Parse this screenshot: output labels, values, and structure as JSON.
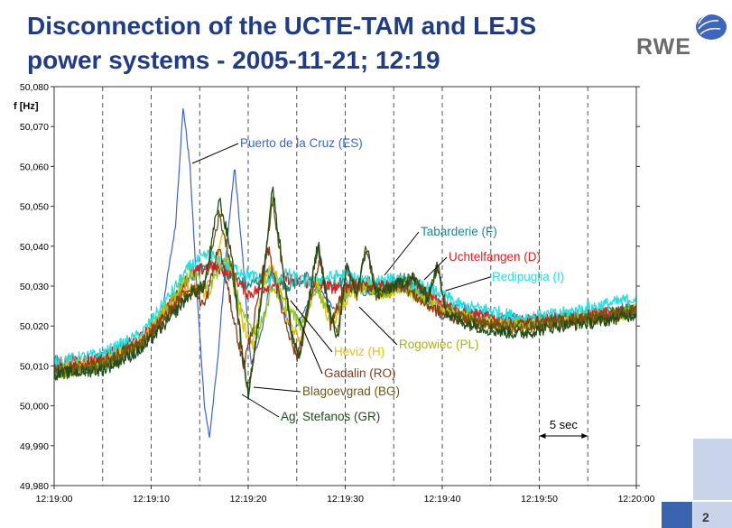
{
  "slide": {
    "title_line1": "Disconnection of the UCTE-TAM and LEJS",
    "title_line2": "power systems - 2005-11-21; 12:19",
    "logo_text": "RWE",
    "page_number": "2"
  },
  "colors": {
    "title": "#1f3b8c",
    "deco_light": "#c9d4ea",
    "deco_dark": "#3a64b0"
  },
  "chart_data": {
    "type": "line",
    "ylabel": "f [Hz]",
    "ylim": [
      49.98,
      50.08
    ],
    "yticks": [
      {
        "v": 50.08,
        "label": "50,080"
      },
      {
        "v": 50.07,
        "label": "50,070"
      },
      {
        "v": 50.06,
        "label": "50,060"
      },
      {
        "v": 50.05,
        "label": "50,050"
      },
      {
        "v": 50.04,
        "label": "50,040"
      },
      {
        "v": 50.03,
        "label": "50,030"
      },
      {
        "v": 50.02,
        "label": "50,020"
      },
      {
        "v": 50.01,
        "label": "50,010"
      },
      {
        "v": 50.0,
        "label": "50,000"
      },
      {
        "v": 49.99,
        "label": "49,990"
      },
      {
        "v": 49.98,
        "label": "49,980"
      }
    ],
    "xlim": [
      0,
      60
    ],
    "xticks": [
      {
        "t": 0,
        "label": "12:19:00"
      },
      {
        "t": 10,
        "label": "12:19:10"
      },
      {
        "t": 20,
        "label": "12:19:20"
      },
      {
        "t": 30,
        "label": "12:19:30"
      },
      {
        "t": 40,
        "label": "12:19:40"
      },
      {
        "t": 50,
        "label": "12:19:50"
      },
      {
        "t": 60,
        "label": "12:20:00"
      }
    ],
    "grid": true,
    "scale_bar": {
      "label": "5 sec",
      "t0": 50,
      "t1": 55
    },
    "series": [
      {
        "name": "Puerto de la Cruz (ES)",
        "color": "#3b66d1",
        "points": [
          [
            0,
            50.009
          ],
          [
            5,
            50.01
          ],
          [
            9,
            50.016
          ],
          [
            11,
            50.022
          ],
          [
            12.5,
            50.045
          ],
          [
            13.3,
            50.075
          ],
          [
            14,
            50.06
          ],
          [
            14.8,
            50.025
          ],
          [
            15.5,
            50.0
          ],
          [
            16,
            49.992
          ],
          [
            16.8,
            50.01
          ],
          [
            17.8,
            50.04
          ],
          [
            18.6,
            50.06
          ],
          [
            19.5,
            50.035
          ],
          [
            20.3,
            50.01
          ],
          [
            21.5,
            50.02
          ],
          [
            22.5,
            50.035
          ],
          [
            23.5,
            50.025
          ],
          [
            24.5,
            50.018
          ],
          [
            25.5,
            50.022
          ],
          [
            27,
            50.03
          ],
          [
            29,
            50.024
          ],
          [
            31,
            50.03
          ],
          [
            33,
            50.028
          ],
          [
            35,
            50.03
          ],
          [
            38,
            50.028
          ],
          [
            40,
            50.022
          ],
          [
            42,
            50.026
          ],
          [
            44,
            50.02
          ],
          [
            47,
            50.023
          ],
          [
            50,
            50.02
          ],
          [
            53,
            50.021
          ],
          [
            56,
            50.022
          ],
          [
            60,
            50.023
          ]
        ]
      },
      {
        "name": "Tabarderie (F)",
        "color": "#1a8a8a",
        "points": [
          [
            0,
            50.009
          ],
          [
            5,
            50.012
          ],
          [
            9,
            50.016
          ],
          [
            12,
            50.025
          ],
          [
            14,
            50.032
          ],
          [
            16,
            50.036
          ],
          [
            18,
            50.033
          ],
          [
            20,
            50.03
          ],
          [
            22,
            50.033
          ],
          [
            24,
            50.03
          ],
          [
            26,
            50.032
          ],
          [
            28,
            50.03
          ],
          [
            30,
            50.031
          ],
          [
            32,
            50.029
          ],
          [
            34,
            50.03
          ],
          [
            36,
            50.032
          ],
          [
            38,
            50.028
          ],
          [
            40,
            50.025
          ],
          [
            42,
            50.024
          ],
          [
            45,
            50.022
          ],
          [
            48,
            50.021
          ],
          [
            52,
            50.022
          ],
          [
            56,
            50.023
          ],
          [
            60,
            50.025
          ]
        ]
      },
      {
        "name": "Uchtelfangen (D)",
        "color": "#e02020",
        "points": [
          [
            0,
            50.011
          ],
          [
            5,
            50.012
          ],
          [
            9,
            50.017
          ],
          [
            12,
            50.026
          ],
          [
            14,
            50.033
          ],
          [
            16,
            50.035
          ],
          [
            18,
            50.034
          ],
          [
            20,
            50.028
          ],
          [
            22,
            50.03
          ],
          [
            24,
            50.032
          ],
          [
            26,
            50.031
          ],
          [
            28,
            50.03
          ],
          [
            30,
            50.029
          ],
          [
            32,
            50.031
          ],
          [
            34,
            50.03
          ],
          [
            36,
            50.031
          ],
          [
            38,
            50.029
          ],
          [
            40,
            50.026
          ],
          [
            42,
            50.023
          ],
          [
            45,
            50.022
          ],
          [
            48,
            50.021
          ],
          [
            52,
            50.022
          ],
          [
            56,
            50.023
          ],
          [
            60,
            50.024
          ]
        ]
      },
      {
        "name": "Redipuglia (I)",
        "color": "#22e0e0",
        "points": [
          [
            0,
            50.011
          ],
          [
            5,
            50.013
          ],
          [
            9,
            50.018
          ],
          [
            12,
            50.028
          ],
          [
            14,
            50.035
          ],
          [
            16,
            50.038
          ],
          [
            18,
            50.035
          ],
          [
            20,
            50.033
          ],
          [
            22,
            50.031
          ],
          [
            24,
            50.033
          ],
          [
            26,
            50.031
          ],
          [
            28,
            50.032
          ],
          [
            30,
            50.033
          ],
          [
            32,
            50.031
          ],
          [
            34,
            50.032
          ],
          [
            36,
            50.031
          ],
          [
            38,
            50.03
          ],
          [
            40,
            50.028
          ],
          [
            42,
            50.025
          ],
          [
            45,
            50.024
          ],
          [
            48,
            50.022
          ],
          [
            52,
            50.023
          ],
          [
            56,
            50.025
          ],
          [
            60,
            50.027
          ]
        ]
      },
      {
        "name": "Rogowiec (PL)",
        "color": "#8cc81e",
        "points": [
          [
            0,
            50.008
          ],
          [
            5,
            50.01
          ],
          [
            9,
            50.016
          ],
          [
            12,
            50.026
          ],
          [
            14,
            50.033
          ],
          [
            16,
            50.03
          ],
          [
            18,
            50.038
          ],
          [
            19.5,
            50.022
          ],
          [
            21,
            50.018
          ],
          [
            22.5,
            50.03
          ],
          [
            24,
            50.025
          ],
          [
            25.5,
            50.02
          ],
          [
            27,
            50.03
          ],
          [
            28.5,
            50.022
          ],
          [
            30,
            50.028
          ],
          [
            32,
            50.03
          ],
          [
            34,
            50.028
          ],
          [
            36,
            50.03
          ],
          [
            38,
            50.027
          ],
          [
            40,
            50.024
          ],
          [
            43,
            50.022
          ],
          [
            46,
            50.02
          ],
          [
            50,
            50.021
          ],
          [
            55,
            50.022
          ],
          [
            60,
            50.024
          ]
        ]
      },
      {
        "name": "Heviz (H)",
        "color": "#e8c000",
        "points": [
          [
            0,
            50.009
          ],
          [
            5,
            50.011
          ],
          [
            9,
            50.016
          ],
          [
            12,
            50.025
          ],
          [
            14,
            50.03
          ],
          [
            16,
            50.028
          ],
          [
            17.5,
            50.044
          ],
          [
            18.5,
            50.03
          ],
          [
            19.5,
            50.02
          ],
          [
            20.5,
            50.015
          ],
          [
            21.5,
            50.03
          ],
          [
            22.5,
            50.036
          ],
          [
            24,
            50.022
          ],
          [
            25.5,
            50.016
          ],
          [
            27,
            50.032
          ],
          [
            28.5,
            50.02
          ],
          [
            30,
            50.026
          ],
          [
            32,
            50.03
          ],
          [
            34,
            50.028
          ],
          [
            36,
            50.03
          ],
          [
            38,
            50.026
          ],
          [
            40,
            50.024
          ],
          [
            44,
            50.021
          ],
          [
            48,
            50.02
          ],
          [
            53,
            50.021
          ],
          [
            60,
            50.023
          ]
        ]
      },
      {
        "name": "Gadalin (RO)",
        "color": "#8c3a1a",
        "points": [
          [
            0,
            50.009
          ],
          [
            5,
            50.011
          ],
          [
            9,
            50.016
          ],
          [
            12,
            50.024
          ],
          [
            14,
            50.03
          ],
          [
            15.5,
            50.025
          ],
          [
            17,
            50.04
          ],
          [
            18.5,
            50.022
          ],
          [
            19.5,
            50.01
          ],
          [
            20.5,
            50.02
          ],
          [
            22,
            50.04
          ],
          [
            23.5,
            50.024
          ],
          [
            25,
            50.012
          ],
          [
            26.5,
            50.028
          ],
          [
            27.5,
            50.037
          ],
          [
            28.5,
            50.02
          ],
          [
            30,
            50.03
          ],
          [
            32,
            50.03
          ],
          [
            34,
            50.03
          ],
          [
            36,
            50.03
          ],
          [
            38,
            50.026
          ],
          [
            40,
            50.023
          ],
          [
            43,
            50.021
          ],
          [
            46,
            50.02
          ],
          [
            50,
            50.021
          ],
          [
            55,
            50.022
          ],
          [
            60,
            50.024
          ]
        ]
      },
      {
        "name": "Blagoevgrad (BG)",
        "color": "#6b5a10",
        "points": [
          [
            0,
            50.008
          ],
          [
            5,
            50.01
          ],
          [
            9,
            50.015
          ],
          [
            12,
            50.023
          ],
          [
            14,
            50.028
          ],
          [
            15.5,
            50.03
          ],
          [
            17,
            50.048
          ],
          [
            18.3,
            50.035
          ],
          [
            19.3,
            50.015
          ],
          [
            20,
            50.003
          ],
          [
            21,
            50.02
          ],
          [
            22.5,
            50.052
          ],
          [
            23.5,
            50.035
          ],
          [
            24.5,
            50.018
          ],
          [
            25.3,
            50.012
          ],
          [
            26.5,
            50.03
          ],
          [
            27.2,
            50.04
          ],
          [
            28.2,
            50.025
          ],
          [
            29.2,
            50.018
          ],
          [
            30.2,
            50.035
          ],
          [
            31.2,
            50.028
          ],
          [
            32.2,
            50.04
          ],
          [
            33.2,
            50.028
          ],
          [
            35,
            50.03
          ],
          [
            37,
            50.032
          ],
          [
            38.5,
            50.027
          ],
          [
            39.5,
            50.035
          ],
          [
            40.5,
            50.024
          ],
          [
            42,
            50.022
          ],
          [
            45,
            50.02
          ],
          [
            48,
            50.019
          ],
          [
            52,
            50.021
          ],
          [
            56,
            50.022
          ],
          [
            60,
            50.024
          ]
        ]
      },
      {
        "name": "Ag. Stefanos (GR)",
        "color": "#1e4d1e",
        "points": [
          [
            0,
            50.008
          ],
          [
            5,
            50.009
          ],
          [
            9,
            50.014
          ],
          [
            12,
            50.022
          ],
          [
            14,
            50.028
          ],
          [
            15.5,
            50.03
          ],
          [
            17,
            50.052
          ],
          [
            18.3,
            50.038
          ],
          [
            19.3,
            50.015
          ],
          [
            20,
            50.003
          ],
          [
            21,
            50.02
          ],
          [
            22.5,
            50.055
          ],
          [
            23.5,
            50.036
          ],
          [
            24.5,
            50.018
          ],
          [
            25.3,
            50.012
          ],
          [
            26.5,
            50.03
          ],
          [
            27.2,
            50.041
          ],
          [
            28.2,
            50.025
          ],
          [
            29.2,
            50.017
          ],
          [
            30.2,
            50.035
          ],
          [
            31.2,
            50.028
          ],
          [
            32.2,
            50.04
          ],
          [
            33.2,
            50.028
          ],
          [
            35,
            50.03
          ],
          [
            37,
            50.032
          ],
          [
            38.5,
            50.027
          ],
          [
            39.5,
            50.035
          ],
          [
            40.5,
            50.023
          ],
          [
            42,
            50.021
          ],
          [
            45,
            50.019
          ],
          [
            48,
            50.018
          ],
          [
            52,
            50.02
          ],
          [
            56,
            50.021
          ],
          [
            60,
            50.023
          ]
        ]
      }
    ],
    "annotations": [
      {
        "text": "Puerto de la Cruz (ES)",
        "series": 0,
        "color": "#3b66d1"
      },
      {
        "text": "Tabarderie (F)",
        "series": 1,
        "color": "#1a8a8a"
      },
      {
        "text": "Uchtelfangen (D)",
        "series": 2,
        "color": "#e02020"
      },
      {
        "text": "Redipuglia (I)",
        "series": 3,
        "color": "#22e0e0"
      },
      {
        "text": "Rogowiec (PL)",
        "series": 4,
        "color": "#a5b800"
      },
      {
        "text": "Heviz (H)",
        "series": 5,
        "color": "#e8c000"
      },
      {
        "text": "Gadalin (RO)",
        "series": 6,
        "color": "#8c3a1a"
      },
      {
        "text": "Blagoevgrad (BG)",
        "series": 7,
        "color": "#6b5a10"
      },
      {
        "text": "Ag. Stefanos (GR)",
        "series": 8,
        "color": "#1e4d1e"
      }
    ]
  }
}
